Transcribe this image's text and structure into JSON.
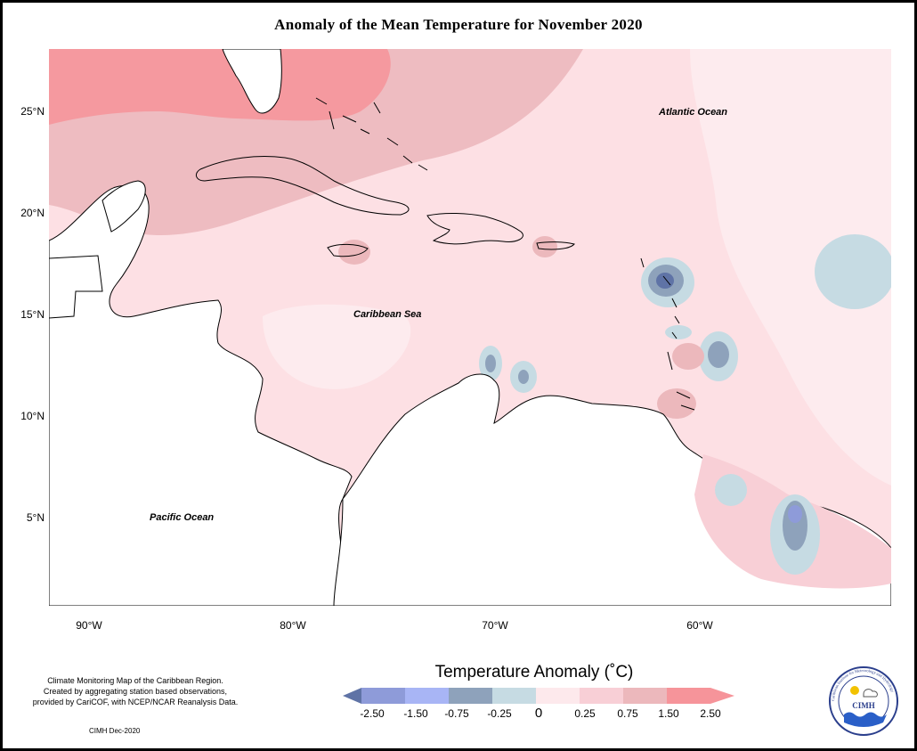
{
  "title": "Anomaly of the Mean Temperature for November 2020",
  "axes": {
    "lat_labels": [
      "25°N",
      "20°N",
      "15°N",
      "10°N",
      "5°N"
    ],
    "lon_labels": [
      "90°W",
      "80°W",
      "70°W",
      "60°W"
    ]
  },
  "map_labels": {
    "atlantic": "Atlantic Ocean",
    "caribbean": "Caribbean Sea",
    "pacific": "Pacific Ocean"
  },
  "note": {
    "line1": "Climate Monitoring Map of the Caribbean Region.",
    "line2": "Created by aggregating station based observations,",
    "line3": "provided by CariCOF, with NCEP/NCAR Reanalysis Data.",
    "stamp": "CIMH Dec-2020"
  },
  "legend": {
    "title": "Temperature Anomaly (˚C)",
    "ticks": [
      "-2.50",
      "-1.50",
      "-0.75",
      "-0.25",
      "0",
      "0.25",
      "0.75",
      "1.50",
      "2.50"
    ],
    "colors": [
      "#5f73a6",
      "#8e9bd9",
      "#a8b5f5",
      "#8ea2bb",
      "#c6dbe3",
      "#fde9ec",
      "#f8cfd6",
      "#ecb8bc",
      "#f6949a"
    ]
  },
  "logo": {
    "text": "CIMH",
    "ring_text": "Caribbean Institute for Meteorology and Hydrology"
  }
}
